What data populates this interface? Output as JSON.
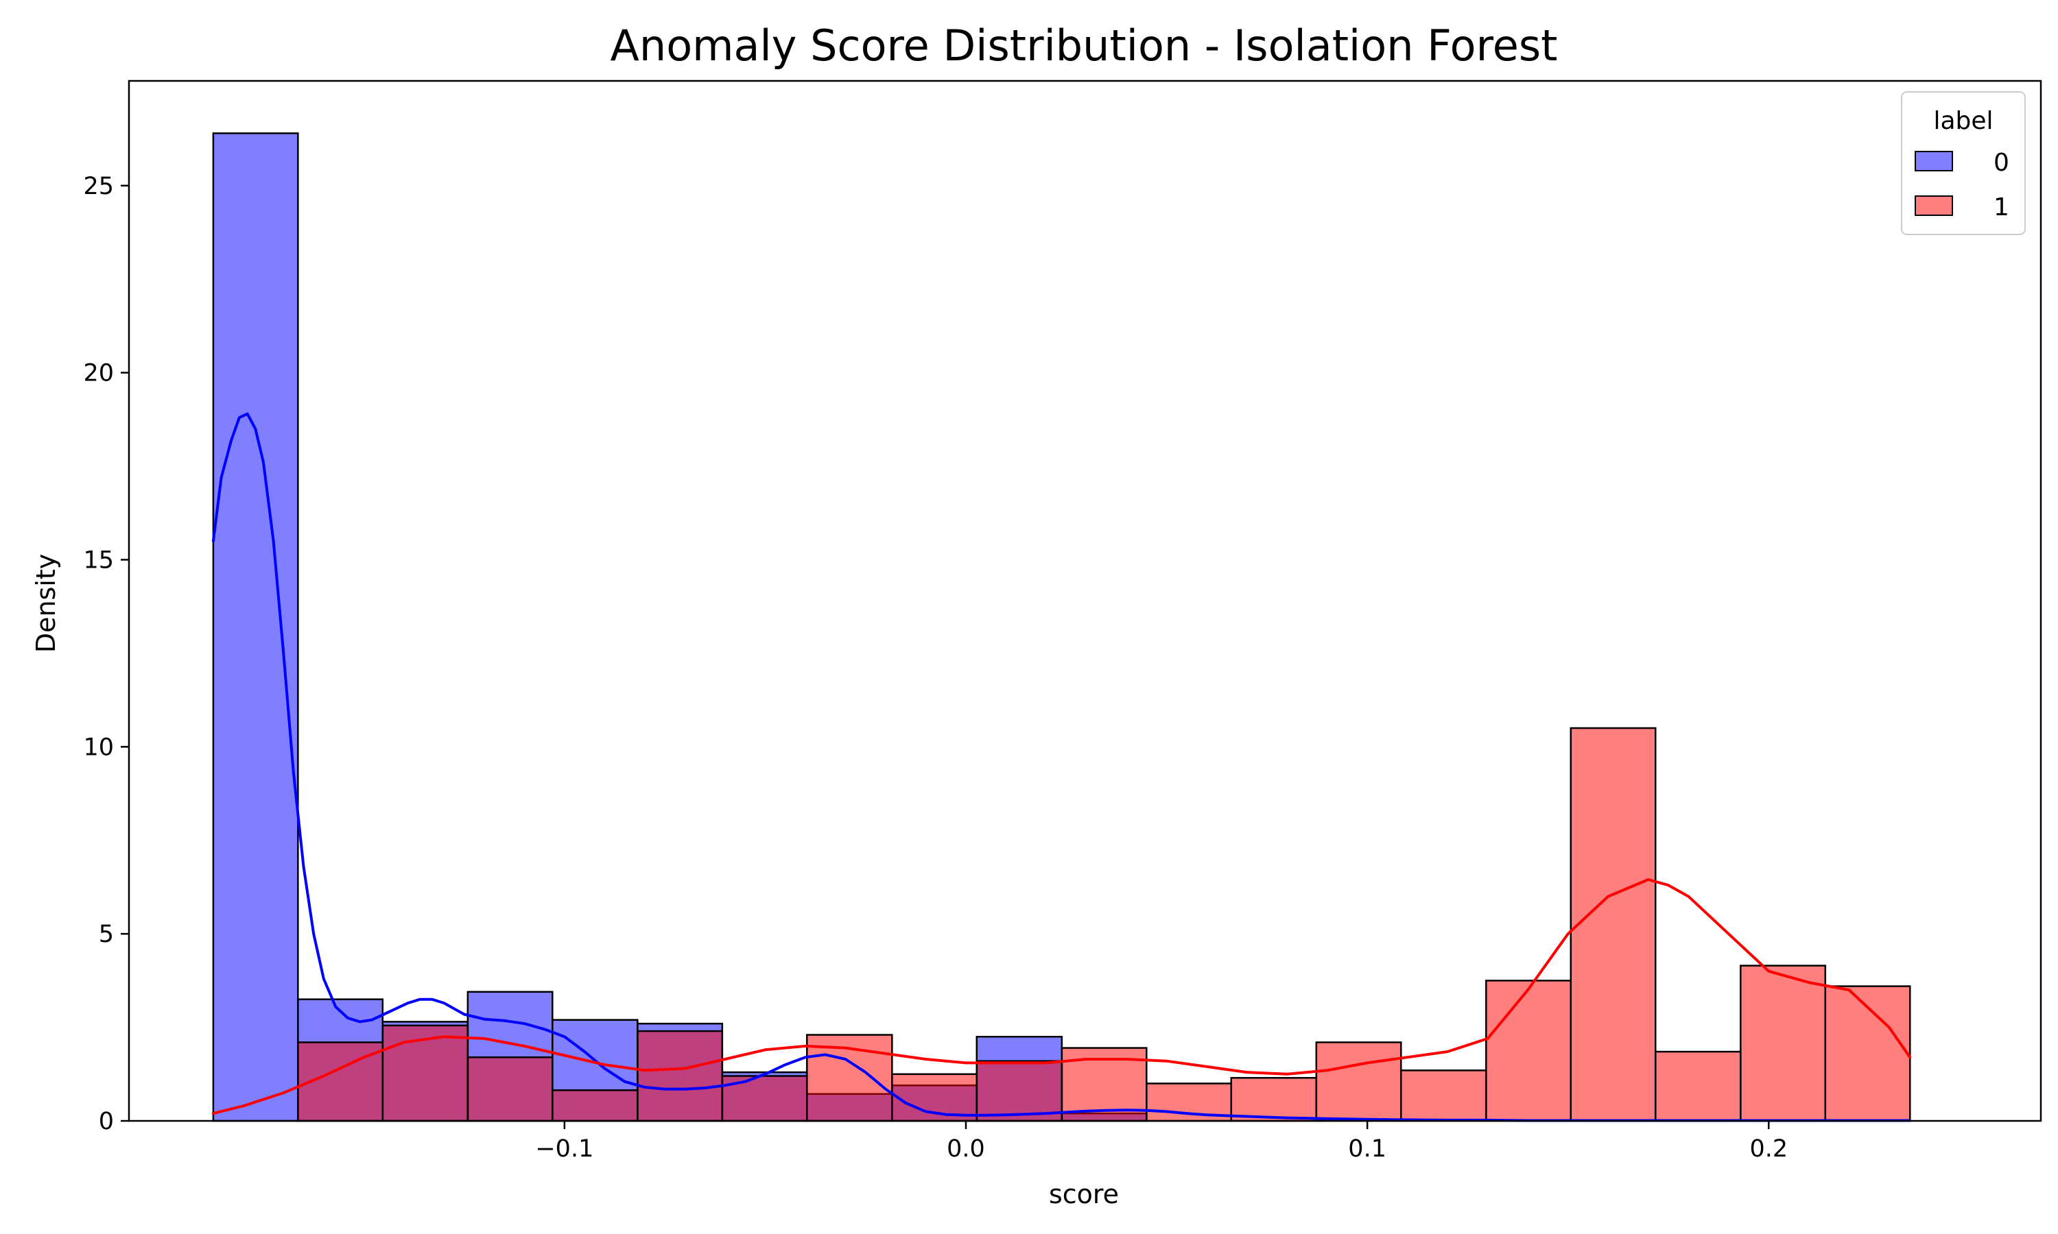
{
  "chart_data": {
    "type": "histogram",
    "title": "Anomaly Score Distribution - Isolation Forest",
    "xlabel": "score",
    "ylabel": "Density",
    "xlim": [
      -0.2085,
      0.2678
    ],
    "ylim": [
      0,
      27.8
    ],
    "xticks": [
      -0.1,
      0.0,
      0.1,
      0.2
    ],
    "xtick_labels": [
      "−0.1",
      "0.0",
      "0.1",
      "0.2"
    ],
    "yticks": [
      0,
      5,
      10,
      15,
      20,
      25
    ],
    "ytick_labels": [
      "0",
      "5",
      "10",
      "15",
      "20",
      "25"
    ],
    "grid": false,
    "bin_edges": [
      -0.1875,
      -0.1664,
      -0.1453,
      -0.1241,
      -0.103,
      -0.0818,
      -0.0607,
      -0.0396,
      -0.0184,
      0.0027,
      0.0239,
      0.045,
      0.0661,
      0.0873,
      0.1084,
      0.1296,
      0.1507,
      0.1718,
      0.193,
      0.2141,
      0.2352
    ],
    "legend": {
      "title": "label",
      "position": "top-right"
    },
    "series": [
      {
        "name": "0",
        "color": "#0000ff",
        "fill": "#8080ff",
        "density": [
          26.4,
          3.25,
          2.65,
          3.45,
          2.7,
          2.6,
          1.3,
          0.72,
          0.95,
          2.25,
          0.2,
          0.0,
          0.0,
          0.0,
          0.0,
          0.0,
          0.0,
          0.0,
          0.0,
          0.0
        ],
        "kde": {
          "x": [
            -0.1875,
            -0.1855,
            -0.183,
            -0.181,
            -0.179,
            -0.177,
            -0.175,
            -0.1725,
            -0.17,
            -0.1675,
            -0.165,
            -0.1625,
            -0.16,
            -0.157,
            -0.154,
            -0.151,
            -0.148,
            -0.145,
            -0.142,
            -0.139,
            -0.136,
            -0.133,
            -0.13,
            -0.125,
            -0.12,
            -0.115,
            -0.11,
            -0.105,
            -0.1,
            -0.095,
            -0.09,
            -0.085,
            -0.08,
            -0.075,
            -0.07,
            -0.065,
            -0.06,
            -0.055,
            -0.05,
            -0.045,
            -0.04,
            -0.035,
            -0.03,
            -0.025,
            -0.02,
            -0.015,
            -0.01,
            -0.005,
            0.0,
            0.005,
            0.01,
            0.015,
            0.02,
            0.025,
            0.03,
            0.035,
            0.04,
            0.045,
            0.05,
            0.055,
            0.06,
            0.07,
            0.08,
            0.09,
            0.1,
            0.11,
            0.12,
            0.13,
            0.14,
            0.15,
            0.16,
            0.17,
            0.18,
            0.19,
            0.2,
            0.21,
            0.22,
            0.235
          ],
          "y": [
            15.5,
            17.2,
            18.2,
            18.8,
            18.9,
            18.5,
            17.6,
            15.5,
            12.5,
            9.3,
            6.8,
            5.0,
            3.8,
            3.05,
            2.75,
            2.65,
            2.7,
            2.85,
            3.0,
            3.15,
            3.25,
            3.25,
            3.15,
            2.85,
            2.72,
            2.68,
            2.6,
            2.45,
            2.25,
            1.85,
            1.4,
            1.05,
            0.9,
            0.85,
            0.85,
            0.88,
            0.95,
            1.05,
            1.25,
            1.5,
            1.7,
            1.77,
            1.65,
            1.3,
            0.85,
            0.48,
            0.25,
            0.17,
            0.15,
            0.15,
            0.16,
            0.18,
            0.2,
            0.23,
            0.26,
            0.28,
            0.29,
            0.28,
            0.25,
            0.2,
            0.16,
            0.12,
            0.08,
            0.06,
            0.04,
            0.03,
            0.02,
            0.02,
            0.01,
            0.01,
            0.01,
            0.01,
            0.01,
            0.01,
            0.01,
            0.01,
            0.01,
            0.01
          ]
        }
      },
      {
        "name": "1",
        "color": "#ff0000",
        "fill": "#ff8080",
        "density": [
          0.0,
          2.1,
          2.55,
          1.7,
          0.82,
          2.4,
          1.2,
          2.3,
          1.25,
          1.6,
          1.95,
          1.0,
          1.15,
          2.1,
          1.35,
          3.75,
          10.5,
          1.85,
          4.15,
          3.6
        ],
        "kde": {
          "x": [
            -0.1875,
            -0.18,
            -0.17,
            -0.16,
            -0.15,
            -0.14,
            -0.13,
            -0.12,
            -0.11,
            -0.1,
            -0.09,
            -0.08,
            -0.07,
            -0.06,
            -0.05,
            -0.04,
            -0.03,
            -0.02,
            -0.01,
            0.0,
            0.01,
            0.02,
            0.03,
            0.04,
            0.05,
            0.06,
            0.07,
            0.08,
            0.09,
            0.1,
            0.11,
            0.12,
            0.13,
            0.14,
            0.15,
            0.16,
            0.17,
            0.175,
            0.18,
            0.19,
            0.2,
            0.21,
            0.22,
            0.23,
            0.2352
          ],
          "y": [
            0.2,
            0.4,
            0.75,
            1.2,
            1.7,
            2.1,
            2.25,
            2.2,
            2.0,
            1.75,
            1.5,
            1.35,
            1.4,
            1.65,
            1.9,
            2.0,
            1.95,
            1.8,
            1.65,
            1.55,
            1.55,
            1.55,
            1.65,
            1.65,
            1.6,
            1.45,
            1.3,
            1.25,
            1.35,
            1.55,
            1.7,
            1.85,
            2.2,
            3.5,
            5.0,
            6.0,
            6.45,
            6.3,
            6.0,
            5.0,
            4.0,
            3.7,
            3.5,
            2.5,
            1.7
          ]
        }
      }
    ]
  }
}
